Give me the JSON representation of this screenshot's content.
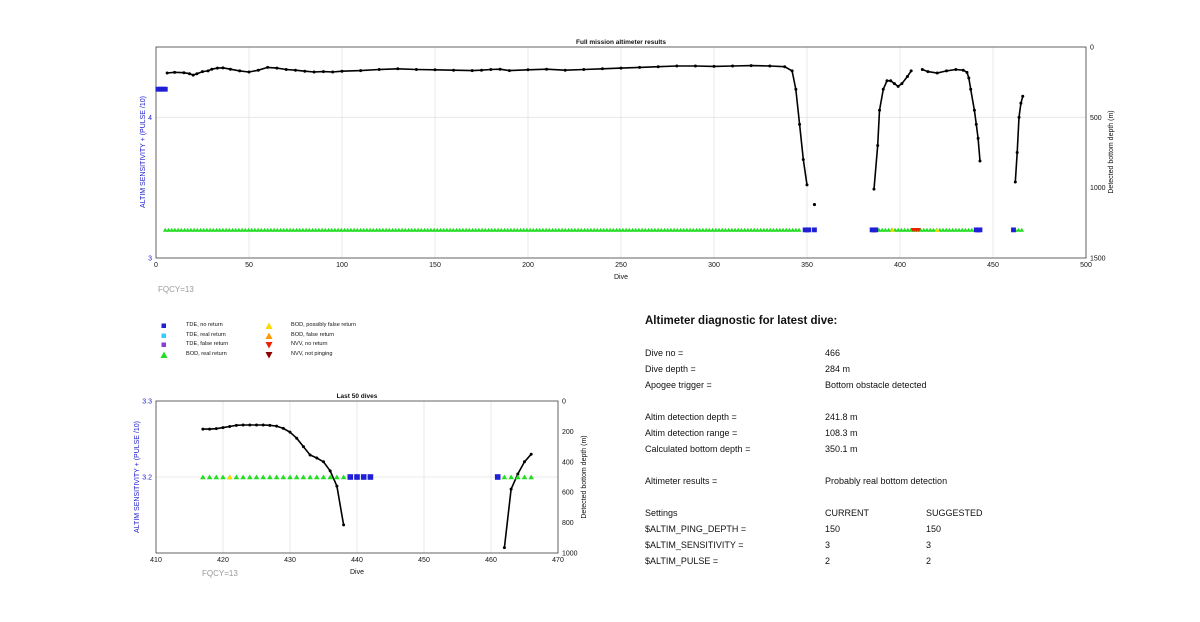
{
  "top_chart_meta": {
    "title": "Full mission altimeter results",
    "ylabel_left": "ALTIM SENSITIVITY + (PULSE /10)",
    "ylabel_right": "Detected bottom depth (m)",
    "xlabel": "Dive",
    "fqcy": "FQCY=13",
    "x_ticks": [
      "0",
      "50",
      "100",
      "150",
      "200",
      "250",
      "300",
      "350",
      "400",
      "450",
      "500"
    ],
    "y_left_ticks": [
      "3",
      "4"
    ],
    "y_right_ticks": [
      "0",
      "500",
      "1000",
      "1500"
    ]
  },
  "bottom_chart_meta": {
    "title": "Last 50 dives",
    "ylabel_left": "ALTIM SENSITIVITY + (PULSE /10)",
    "ylabel_right": "Detected bottom depth (m)",
    "xlabel": "Dive",
    "fqcy": "FQCY=13",
    "x_ticks": [
      "410",
      "420",
      "430",
      "440",
      "450",
      "460",
      "470"
    ],
    "y_left_ticks": [
      "3.2",
      "3.3"
    ],
    "y_right_ticks": [
      "0",
      "200",
      "400",
      "600",
      "800",
      "1000"
    ]
  },
  "legend": [
    {
      "label": "TDE, no return",
      "color": "#1f1fd6",
      "shape": "square"
    },
    {
      "label": "TDE, real return",
      "color": "#33ccff",
      "shape": "square"
    },
    {
      "label": "TDE, false return",
      "color": "#8a3cd6",
      "shape": "square"
    },
    {
      "label": "BOD, real return",
      "color": "#22dd22",
      "shape": "triangle-up"
    },
    {
      "label": "BOD, possibly false return",
      "color": "#ffd700",
      "shape": "triangle-up"
    },
    {
      "label": "BOD, false return",
      "color": "#ff9900",
      "shape": "triangle-up"
    },
    {
      "label": "NVV, no return",
      "color": "#ee2200",
      "shape": "triangle-down"
    },
    {
      "label": "NVV, not pinging",
      "color": "#8b0000",
      "shape": "triangle-down"
    }
  ],
  "diagnostic": {
    "title": "Altimeter diagnostic for latest dive:",
    "dive_no_label": "Dive no =",
    "dive_no": "466",
    "dive_depth_label": "Dive depth =",
    "dive_depth": "284 m",
    "apogee_label": "Apogee trigger =",
    "apogee": "Bottom obstacle detected",
    "det_depth_label": "Altim detection depth =",
    "det_depth": "241.8 m",
    "det_range_label": "Altim detection range =",
    "det_range": "108.3 m",
    "calc_depth_label": "Calculated bottom depth =",
    "calc_depth": "350.1 m",
    "results_label": "Altimeter results =",
    "results": "Probably real bottom detection",
    "settings_label": "Settings",
    "current_label": "CURRENT",
    "suggested_label": "SUGGESTED",
    "ping_label": "$ALTIM_PING_DEPTH =",
    "ping_current": "150",
    "ping_suggested": "150",
    "sens_label": "$ALTIM_SENSITIVITY =",
    "sens_current": "3",
    "sens_suggested": "3",
    "pulse_label": "$ALTIM_PULSE =",
    "pulse_current": "2",
    "pulse_suggested": "2"
  },
  "chart_data": [
    {
      "type": "scatter",
      "title": "Full mission altimeter results",
      "xlabel": "Dive",
      "ylabel": "ALTIM SENSITIVITY + (PULSE /10)",
      "y2label": "Detected bottom depth (m)",
      "xlim": [
        0,
        500
      ],
      "ylim": [
        3,
        4.5
      ],
      "y2lim": [
        1500,
        0
      ],
      "grid": true,
      "series": [
        {
          "name": "Detected bottom depth",
          "kind": "depth-line",
          "segments": [
            [
              [
                6,
                185
              ],
              [
                10,
                180
              ],
              [
                15,
                183
              ],
              [
                18,
                190
              ],
              [
                20,
                200
              ],
              [
                22,
                190
              ],
              [
                25,
                175
              ],
              [
                28,
                170
              ],
              [
                30,
                158
              ],
              [
                33,
                150
              ],
              [
                36,
                148
              ],
              [
                40,
                158
              ],
              [
                45,
                170
              ],
              [
                50,
                178
              ],
              [
                55,
                165
              ],
              [
                60,
                145
              ],
              [
                65,
                150
              ],
              [
                70,
                160
              ],
              [
                75,
                165
              ],
              [
                80,
                172
              ],
              [
                85,
                178
              ],
              [
                90,
                175
              ],
              [
                95,
                178
              ],
              [
                100,
                172
              ],
              [
                110,
                168
              ],
              [
                120,
                160
              ],
              [
                130,
                155
              ],
              [
                140,
                160
              ],
              [
                150,
                162
              ],
              [
                160,
                165
              ],
              [
                170,
                168
              ],
              [
                175,
                165
              ],
              [
                180,
                160
              ],
              [
                185,
                158
              ],
              [
                190,
                168
              ],
              [
                200,
                162
              ],
              [
                210,
                158
              ],
              [
                220,
                165
              ],
              [
                230,
                160
              ],
              [
                240,
                155
              ],
              [
                250,
                150
              ],
              [
                260,
                145
              ],
              [
                270,
                140
              ],
              [
                280,
                135
              ],
              [
                290,
                135
              ],
              [
                300,
                138
              ],
              [
                310,
                135
              ],
              [
                320,
                132
              ],
              [
                330,
                135
              ],
              [
                338,
                140
              ],
              [
                342,
                170
              ],
              [
                344,
                300
              ],
              [
                346,
                550
              ],
              [
                348,
                800
              ],
              [
                350,
                980
              ]
            ],
            [
              [
                386,
                1010
              ],
              [
                388,
                700
              ],
              [
                389,
                450
              ],
              [
                391,
                300
              ],
              [
                393,
                240
              ],
              [
                395,
                240
              ],
              [
                397,
                260
              ],
              [
                399,
                280
              ],
              [
                401,
                260
              ],
              [
                404,
                210
              ],
              [
                406,
                170
              ]
            ],
            [
              [
                412,
                160
              ],
              [
                415,
                175
              ],
              [
                420,
                185
              ],
              [
                425,
                170
              ],
              [
                430,
                160
              ],
              [
                434,
                165
              ],
              [
                436,
                180
              ],
              [
                437,
                220
              ],
              [
                438,
                300
              ],
              [
                440,
                450
              ],
              [
                441,
                550
              ],
              [
                442,
                650
              ],
              [
                443,
                810
              ]
            ],
            [
              [
                462,
                960
              ],
              [
                463,
                750
              ],
              [
                464,
                500
              ],
              [
                465,
                400
              ],
              [
                466,
                350
              ]
            ]
          ],
          "extra_points": [
            [
              354,
              1120
            ]
          ]
        },
        {
          "name": "TDE, no return",
          "kind": "marker",
          "y": 4.2,
          "x": [
            1,
            2,
            3,
            4,
            5
          ]
        },
        {
          "name": "BOD, real return",
          "kind": "band",
          "y": 3.2,
          "x_ranges": [
            [
              5,
              300
            ],
            [
              301,
              347
            ],
            [
              387,
              440
            ],
            [
              462,
              466
            ]
          ]
        },
        {
          "name": "TDE, no return",
          "kind": "band-markers",
          "y": 3.2,
          "x": [
            349,
            350,
            351,
            354,
            385,
            386,
            387,
            441,
            442,
            443,
            461
          ]
        },
        {
          "name": "NVV, no return",
          "kind": "band-markers",
          "y": 3.2,
          "x": [
            407,
            408,
            409,
            410
          ]
        },
        {
          "name": "BOD, possibly false return",
          "kind": "band-markers",
          "y": 3.2,
          "x": [
            396,
            420
          ]
        }
      ]
    },
    {
      "type": "scatter",
      "title": "Last 50 dives",
      "xlabel": "Dive",
      "ylabel": "ALTIM SENSITIVITY + (PULSE /10)",
      "y2label": "Detected bottom depth (m)",
      "xlim": [
        410,
        470
      ],
      "ylim": [
        3.1,
        3.3
      ],
      "y2lim": [
        1000,
        0
      ],
      "grid": true,
      "series": [
        {
          "name": "Detected bottom depth",
          "kind": "depth-line",
          "segments": [
            [
              [
                417,
                185
              ],
              [
                418,
                185
              ],
              [
                419,
                182
              ],
              [
                420,
                175
              ],
              [
                421,
                168
              ],
              [
                422,
                160
              ],
              [
                423,
                158
              ],
              [
                424,
                158
              ],
              [
                425,
                158
              ],
              [
                426,
                158
              ],
              [
                427,
                160
              ],
              [
                428,
                165
              ],
              [
                429,
                180
              ],
              [
                430,
                205
              ],
              [
                431,
                245
              ],
              [
                432,
                300
              ],
              [
                433,
                355
              ],
              [
                434,
                375
              ],
              [
                435,
                400
              ],
              [
                436,
                460
              ],
              [
                437,
                560
              ],
              [
                438,
                815
              ]
            ],
            [
              [
                462,
                965
              ],
              [
                463,
                580
              ],
              [
                464,
                480
              ],
              [
                465,
                400
              ],
              [
                466,
                350
              ]
            ]
          ]
        },
        {
          "name": "BOD, real return",
          "kind": "marker",
          "y": 3.2,
          "x": [
            417,
            418,
            419,
            420,
            421,
            422,
            423,
            424,
            425,
            426,
            427,
            428,
            429,
            430,
            431,
            432,
            433,
            434,
            435,
            436,
            437,
            438,
            462,
            463,
            464,
            465,
            466
          ]
        },
        {
          "name": "BOD, possibly false return",
          "kind": "marker",
          "y": 3.2,
          "x": [
            421
          ]
        },
        {
          "name": "TDE, no return",
          "kind": "marker",
          "y": 3.2,
          "x": [
            439,
            440,
            441,
            442,
            461
          ]
        }
      ]
    }
  ]
}
